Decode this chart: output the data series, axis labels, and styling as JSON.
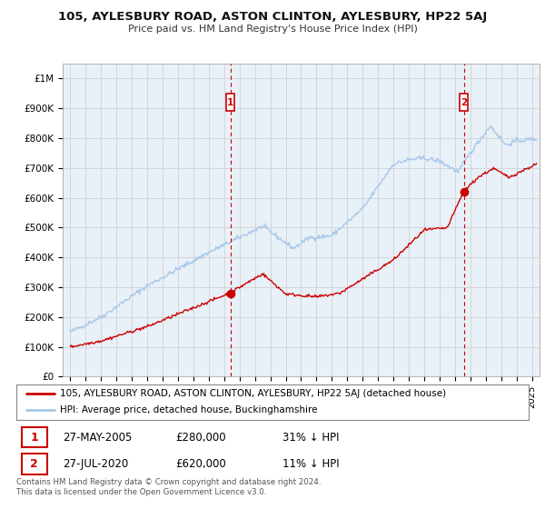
{
  "title": "105, AYLESBURY ROAD, ASTON CLINTON, AYLESBURY, HP22 5AJ",
  "subtitle": "Price paid vs. HM Land Registry's House Price Index (HPI)",
  "ylim": [
    0,
    1050000
  ],
  "xlim_start": 1994.5,
  "xlim_end": 2025.5,
  "yticks": [
    0,
    100000,
    200000,
    300000,
    400000,
    500000,
    600000,
    700000,
    800000,
    900000,
    1000000
  ],
  "ytick_labels": [
    "£0",
    "£100K",
    "£200K",
    "£300K",
    "£400K",
    "£500K",
    "£600K",
    "£700K",
    "£800K",
    "£900K",
    "£1M"
  ],
  "xticks": [
    1995,
    1996,
    1997,
    1998,
    1999,
    2000,
    2001,
    2002,
    2003,
    2004,
    2005,
    2006,
    2007,
    2008,
    2009,
    2010,
    2011,
    2012,
    2013,
    2014,
    2015,
    2016,
    2017,
    2018,
    2019,
    2020,
    2021,
    2022,
    2023,
    2024,
    2025
  ],
  "hpi_color": "#a8c8e8",
  "price_color": "#cc0000",
  "chart_bg": "#e8f0f8",
  "sale1_date": 2005.4,
  "sale1_price": 280000,
  "sale2_date": 2020.57,
  "sale2_price": 620000,
  "marker_top_y": 920000,
  "legend_line1": "105, AYLESBURY ROAD, ASTON CLINTON, AYLESBURY, HP22 5AJ (detached house)",
  "legend_line2": "HPI: Average price, detached house, Buckinghamshire",
  "annotation1_date": "27-MAY-2005",
  "annotation1_price": "£280,000",
  "annotation1_pct": "31% ↓ HPI",
  "annotation2_date": "27-JUL-2020",
  "annotation2_price": "£620,000",
  "annotation2_pct": "11% ↓ HPI",
  "footer": "Contains HM Land Registry data © Crown copyright and database right 2024.\nThis data is licensed under the Open Government Licence v3.0.",
  "background_color": "#ffffff",
  "grid_color": "#cccccc"
}
